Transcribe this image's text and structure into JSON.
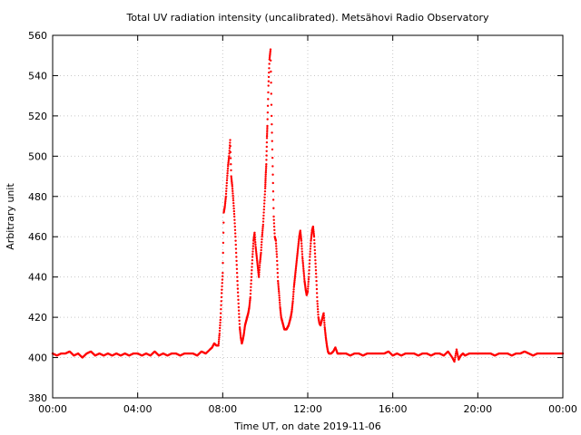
{
  "chart_data": {
    "type": "scatter",
    "title": "Total UV radiation intensity (uncalibrated). Metsähovi Radio Observatory",
    "xlabel": "Time UT, on date 2019-11-06",
    "ylabel": "Arbitrary unit",
    "xlim": [
      0,
      24
    ],
    "ylim": [
      380,
      560
    ],
    "xticks": [
      0,
      4,
      8,
      12,
      16,
      20,
      24
    ],
    "xtick_labels": [
      "00:00",
      "04:00",
      "08:00",
      "12:00",
      "16:00",
      "20:00",
      "00:00"
    ],
    "yticks": [
      380,
      400,
      420,
      440,
      460,
      480,
      500,
      520,
      540,
      560
    ],
    "ytick_labels": [
      "380",
      "400",
      "420",
      "440",
      "460",
      "480",
      "500",
      "520",
      "540",
      "560"
    ],
    "grid": true,
    "marker_color": "#ff0000",
    "series": [
      {
        "x": [
          0.0,
          0.2,
          0.4,
          0.6,
          0.8,
          1.0,
          1.2,
          1.4,
          1.6,
          1.8,
          2.0,
          2.2,
          2.4,
          2.6,
          2.8,
          3.0,
          3.2,
          3.4,
          3.6,
          3.8,
          4.0,
          4.2,
          4.4,
          4.6,
          4.8,
          5.0,
          5.2,
          5.4,
          5.6,
          5.8,
          6.0,
          6.2,
          6.4,
          6.6,
          6.8,
          7.0,
          7.2,
          7.4,
          7.5,
          7.6,
          7.7,
          7.8,
          7.85,
          7.9,
          7.95,
          8.0,
          8.05,
          8.1,
          8.15,
          8.2,
          8.25,
          8.3,
          8.35,
          8.4,
          8.45,
          8.5,
          8.55,
          8.6,
          8.65,
          8.7,
          8.75,
          8.8,
          8.85,
          8.9,
          8.95,
          9.0,
          9.05,
          9.1,
          9.15,
          9.2,
          9.25,
          9.3,
          9.35,
          9.4,
          9.45,
          9.5,
          9.55,
          9.6,
          9.65,
          9.7,
          9.75,
          9.8,
          9.85,
          9.9,
          9.95,
          10.0,
          10.02,
          10.05,
          10.08,
          10.1,
          10.15,
          10.2,
          10.25,
          10.3,
          10.35,
          10.4,
          10.45,
          10.5,
          10.55,
          10.6,
          10.65,
          10.7,
          10.75,
          10.8,
          10.85,
          10.9,
          10.95,
          11.0,
          11.05,
          11.1,
          11.15,
          11.2,
          11.25,
          11.3,
          11.35,
          11.4,
          11.45,
          11.5,
          11.55,
          11.6,
          11.65,
          11.7,
          11.75,
          11.8,
          11.85,
          11.9,
          11.95,
          12.0,
          12.05,
          12.1,
          12.15,
          12.2,
          12.25,
          12.3,
          12.35,
          12.4,
          12.45,
          12.5,
          12.55,
          12.6,
          12.65,
          12.7,
          12.75,
          12.8,
          12.85,
          12.9,
          12.95,
          13.0,
          13.1,
          13.2,
          13.3,
          13.4,
          13.5,
          13.6,
          13.8,
          14.0,
          14.2,
          14.4,
          14.6,
          14.8,
          15.0,
          15.2,
          15.4,
          15.6,
          15.8,
          16.0,
          16.2,
          16.4,
          16.6,
          16.8,
          17.0,
          17.2,
          17.4,
          17.6,
          17.8,
          18.0,
          18.2,
          18.4,
          18.6,
          18.8,
          18.9,
          19.0,
          19.1,
          19.2,
          19.3,
          19.4,
          19.6,
          19.8,
          20.0,
          20.2,
          20.4,
          20.6,
          20.8,
          21.0,
          21.2,
          21.4,
          21.6,
          21.8,
          22.0,
          22.2,
          22.4,
          22.6,
          22.8,
          23.0,
          23.2,
          23.4,
          23.6,
          23.8,
          24.0
        ],
        "y": [
          402,
          401,
          402,
          402,
          403,
          401,
          402,
          400,
          402,
          403,
          401,
          402,
          401,
          402,
          401,
          402,
          401,
          402,
          401,
          402,
          402,
          401,
          402,
          401,
          403,
          401,
          402,
          401,
          402,
          402,
          401,
          402,
          402,
          402,
          401,
          403,
          402,
          404,
          405,
          407,
          406,
          406,
          412,
          420,
          432,
          442,
          472,
          475,
          480,
          488,
          495,
          500,
          508,
          490,
          485,
          478,
          470,
          460,
          448,
          436,
          425,
          415,
          410,
          407,
          409,
          412,
          416,
          418,
          420,
          422,
          425,
          430,
          440,
          450,
          458,
          462,
          455,
          450,
          445,
          440,
          447,
          452,
          460,
          466,
          475,
          484,
          490,
          496,
          509,
          515,
          535,
          548,
          553,
          520,
          495,
          470,
          460,
          458,
          450,
          438,
          432,
          425,
          420,
          418,
          416,
          414,
          414,
          414,
          415,
          416,
          418,
          420,
          423,
          428,
          435,
          440,
          445,
          450,
          455,
          460,
          463,
          458,
          450,
          444,
          438,
          434,
          431,
          433,
          440,
          450,
          458,
          463,
          465,
          460,
          450,
          440,
          428,
          420,
          417,
          416,
          418,
          420,
          422,
          415,
          410,
          406,
          403,
          402,
          402,
          403,
          405,
          402,
          402,
          402,
          402,
          401,
          402,
          402,
          401,
          402,
          402,
          402,
          402,
          402,
          403,
          401,
          402,
          401,
          402,
          402,
          402,
          401,
          402,
          402,
          401,
          402,
          402,
          401,
          403,
          400,
          398,
          404,
          399,
          401,
          402,
          401,
          402,
          402,
          402,
          402,
          402,
          402,
          401,
          402,
          402,
          402,
          401,
          402,
          402,
          403,
          402,
          401,
          402,
          402,
          402,
          402,
          402,
          402,
          402
        ]
      }
    ]
  }
}
